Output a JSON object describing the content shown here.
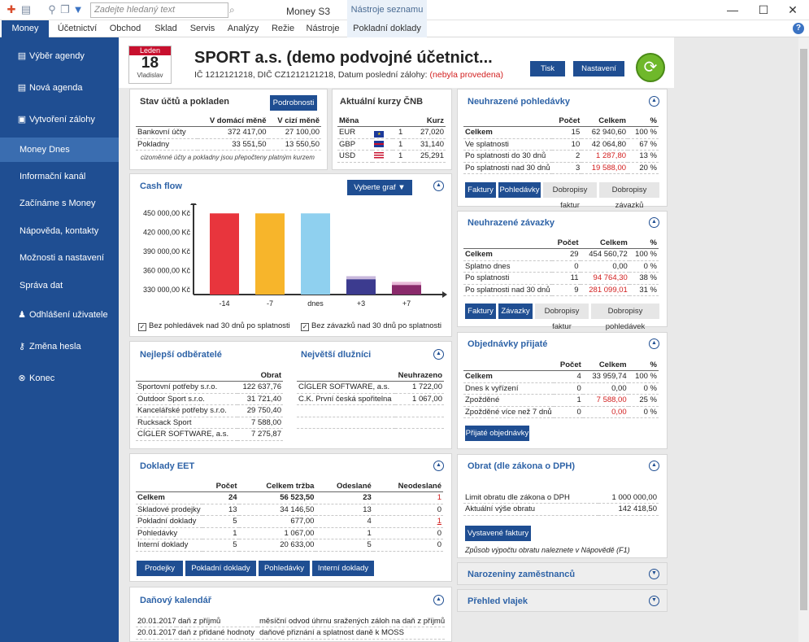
{
  "titlebar": {
    "search_placeholder": "Zadejte hledaný text",
    "app_title": "Money S3",
    "tools_tab": "Nástroje seznamu"
  },
  "menu": {
    "tabs": [
      "Money",
      "Účetnictví",
      "Obchod",
      "Sklad",
      "Servis",
      "Analýzy",
      "Režie",
      "Nástroje",
      "Pokladní doklady"
    ]
  },
  "sidebar": {
    "items": [
      "Výběr agendy",
      "Nová agenda",
      "Vytvoření zálohy",
      "Money Dnes",
      "Informační kanál",
      "Začínáme s Money",
      "Nápověda, kontakty",
      "Možnosti a nastavení",
      "Správa dat",
      "Odhlášení uživatele",
      "Změna hesla",
      "Konec"
    ]
  },
  "header": {
    "cal_month": "Leden",
    "cal_day": "18",
    "cal_name": "Vladislav",
    "company": "SPORT a.s. (demo podvojné účetnict...",
    "info": "IČ 1212121218, DIČ CZ1212121218, Datum poslední zálohy:",
    "backup": "(nebyla provedena)",
    "print_btn": "Tisk",
    "settings_btn": "Nastavení"
  },
  "accounts": {
    "title": "Stav účtů a pokladen",
    "details_btn": "Podrobnosti",
    "col1": "V domácí měně",
    "col2": "V cizí měně",
    "rows": [
      [
        "Bankovní účty",
        "372 417,00",
        "27 100,00"
      ],
      [
        "Pokladny",
        "33 551,50",
        "13 550,50"
      ]
    ],
    "note": "cizoměnné účty a pokladny jsou přepočteny platným kurzem"
  },
  "rates": {
    "title": "Aktuální kurzy ČNB",
    "col1": "Měna",
    "col2": "Kurz",
    "rows": [
      [
        "EUR",
        "1",
        "27,020"
      ],
      [
        "GBP",
        "1",
        "31,140"
      ],
      [
        "USD",
        "1",
        "25,291"
      ]
    ]
  },
  "cashflow": {
    "title": "Cash flow",
    "select_btn": "Vyberte graf",
    "chk1": "Bez pohledávek nad 30 dnů po splatnosti",
    "chk2": "Bez závazků nad 30 dnů po splatnosti"
  },
  "chart_data": {
    "type": "bar",
    "categories": [
      "-14",
      "-7",
      "dnes",
      "+3",
      "+7"
    ],
    "values": [
      450000,
      450000,
      450000,
      346000,
      337000
    ],
    "light_values": [
      0,
      0,
      0,
      351000,
      342000
    ],
    "colors": [
      "#e8353d",
      "#f7b52b",
      "#8fd0ef",
      "#3c3b8f",
      "#8a2a6b"
    ],
    "light_colors": [
      "",
      "",
      "",
      "#c8b8dc",
      "#e8b8d8"
    ],
    "ylim": [
      322000,
      458000
    ],
    "ticks": [
      "450 000,00 Kč",
      "420 000,00 Kč",
      "390 000,00 Kč",
      "360 000,00 Kč",
      "330 000,00 Kč"
    ],
    "tick_values": [
      450000,
      420000,
      390000,
      360000,
      330000
    ]
  },
  "customers": {
    "title": "Nejlepší odběratelé",
    "col": "Obrat",
    "rows": [
      [
        "Sportovní potřeby s.r.o.",
        "122 637,76"
      ],
      [
        "Outdoor Sport s.r.o.",
        "31 721,40"
      ],
      [
        "Kancelářské potřeby s.r.o.",
        "29 750,40"
      ],
      [
        "Rucksack Sport",
        "7 588,00"
      ],
      [
        "CÍGLER SOFTWARE, a.s.",
        "7 275,87"
      ]
    ]
  },
  "debtors": {
    "title": "Největší dlužníci",
    "col": "Neuhrazeno",
    "rows": [
      [
        "CÍGLER SOFTWARE, a.s.",
        "1 722,00"
      ],
      [
        "C.K. První česká spořitelna",
        "1 067,00"
      ]
    ]
  },
  "eet": {
    "title": "Doklady EET",
    "cols": [
      "Počet",
      "Celkem tržba",
      "Odeslané",
      "Neodeslané"
    ],
    "rows": [
      [
        "Celkem",
        "24",
        "56 523,50",
        "23",
        "1"
      ],
      [
        "Skladové prodejky",
        "13",
        "34 146,50",
        "13",
        "0"
      ],
      [
        "Pokladní doklady",
        "5",
        "677,00",
        "4",
        "1"
      ],
      [
        "Pohledávky",
        "1",
        "1 067,00",
        "1",
        "0"
      ],
      [
        "Interní doklady",
        "5",
        "20 633,00",
        "5",
        "0"
      ]
    ],
    "buttons": [
      "Prodejky",
      "Pokladní doklady",
      "Pohledávky",
      "Interní doklady"
    ]
  },
  "tax": {
    "title": "Daňový kalendář",
    "rows": [
      [
        "20.01.2017",
        "daň z příjmů",
        "měsíční odvod úhrnu sražených záloh na daň z příjmů fyzic"
      ],
      [
        "20.01.2017",
        "daň z přidané hodnoty",
        "daňové přiznání a splatnost daně k MOSS"
      ]
    ]
  },
  "receivables": {
    "title": "Neuhrazené pohledávky",
    "cols": [
      "Počet",
      "Celkem",
      "%"
    ],
    "rows": [
      [
        "Celkem",
        "15",
        "62 940,60",
        "100 %"
      ],
      [
        "Ve splatnosti",
        "10",
        "42 064,80",
        "67 %"
      ],
      [
        "Po splatnosti do 30 dnů",
        "2",
        "1 287,80",
        "13 %"
      ],
      [
        "Po splatnosti nad 30 dnů",
        "3",
        "19 588,00",
        "20 %"
      ]
    ],
    "buttons": [
      "Faktury",
      "Pohledávky",
      "Dobropisy faktur",
      "Dobropisy závazků"
    ]
  },
  "payables": {
    "title": "Neuhrazené závazky",
    "cols": [
      "Počet",
      "Celkem",
      "%"
    ],
    "rows": [
      [
        "Celkem",
        "29",
        "454 560,72",
        "100 %"
      ],
      [
        "Splatno dnes",
        "0",
        "0,00",
        "0 %"
      ],
      [
        "Po splatnosti",
        "11",
        "94 764,30",
        "38 %"
      ],
      [
        "Po splatnosti nad 30 dnů",
        "9",
        "281 099,01",
        "31 %"
      ]
    ],
    "buttons": [
      "Faktury",
      "Závazky",
      "Dobropisy faktur",
      "Dobropisy pohledávek"
    ]
  },
  "orders": {
    "title": "Objednávky přijaté",
    "cols": [
      "Počet",
      "Celkem",
      "%"
    ],
    "rows": [
      [
        "Celkem",
        "4",
        "33 959,74",
        "100 %"
      ],
      [
        "Dnes k vyřízení",
        "0",
        "0,00",
        "0 %"
      ],
      [
        "Zpožděné",
        "1",
        "7 588,00",
        "25 %"
      ],
      [
        "Zpožděné více než 7 dnů",
        "0",
        "0,00",
        "0 %"
      ]
    ],
    "button": "Přijaté objednávky"
  },
  "turnover": {
    "title": "Obrat (dle zákona o DPH)",
    "rows": [
      [
        "Limit obratu dle zákona o DPH",
        "1 000 000,00"
      ],
      [
        "Aktuální výše obratu",
        "142 418,50"
      ]
    ],
    "button": "Vystavené faktury",
    "note": "Způsob výpočtu obratu naleznete v Nápovědě (F1)"
  },
  "birthdays": {
    "title": "Narozeniny zaměstnanců"
  },
  "flags": {
    "title": "Přehled vlajek"
  }
}
